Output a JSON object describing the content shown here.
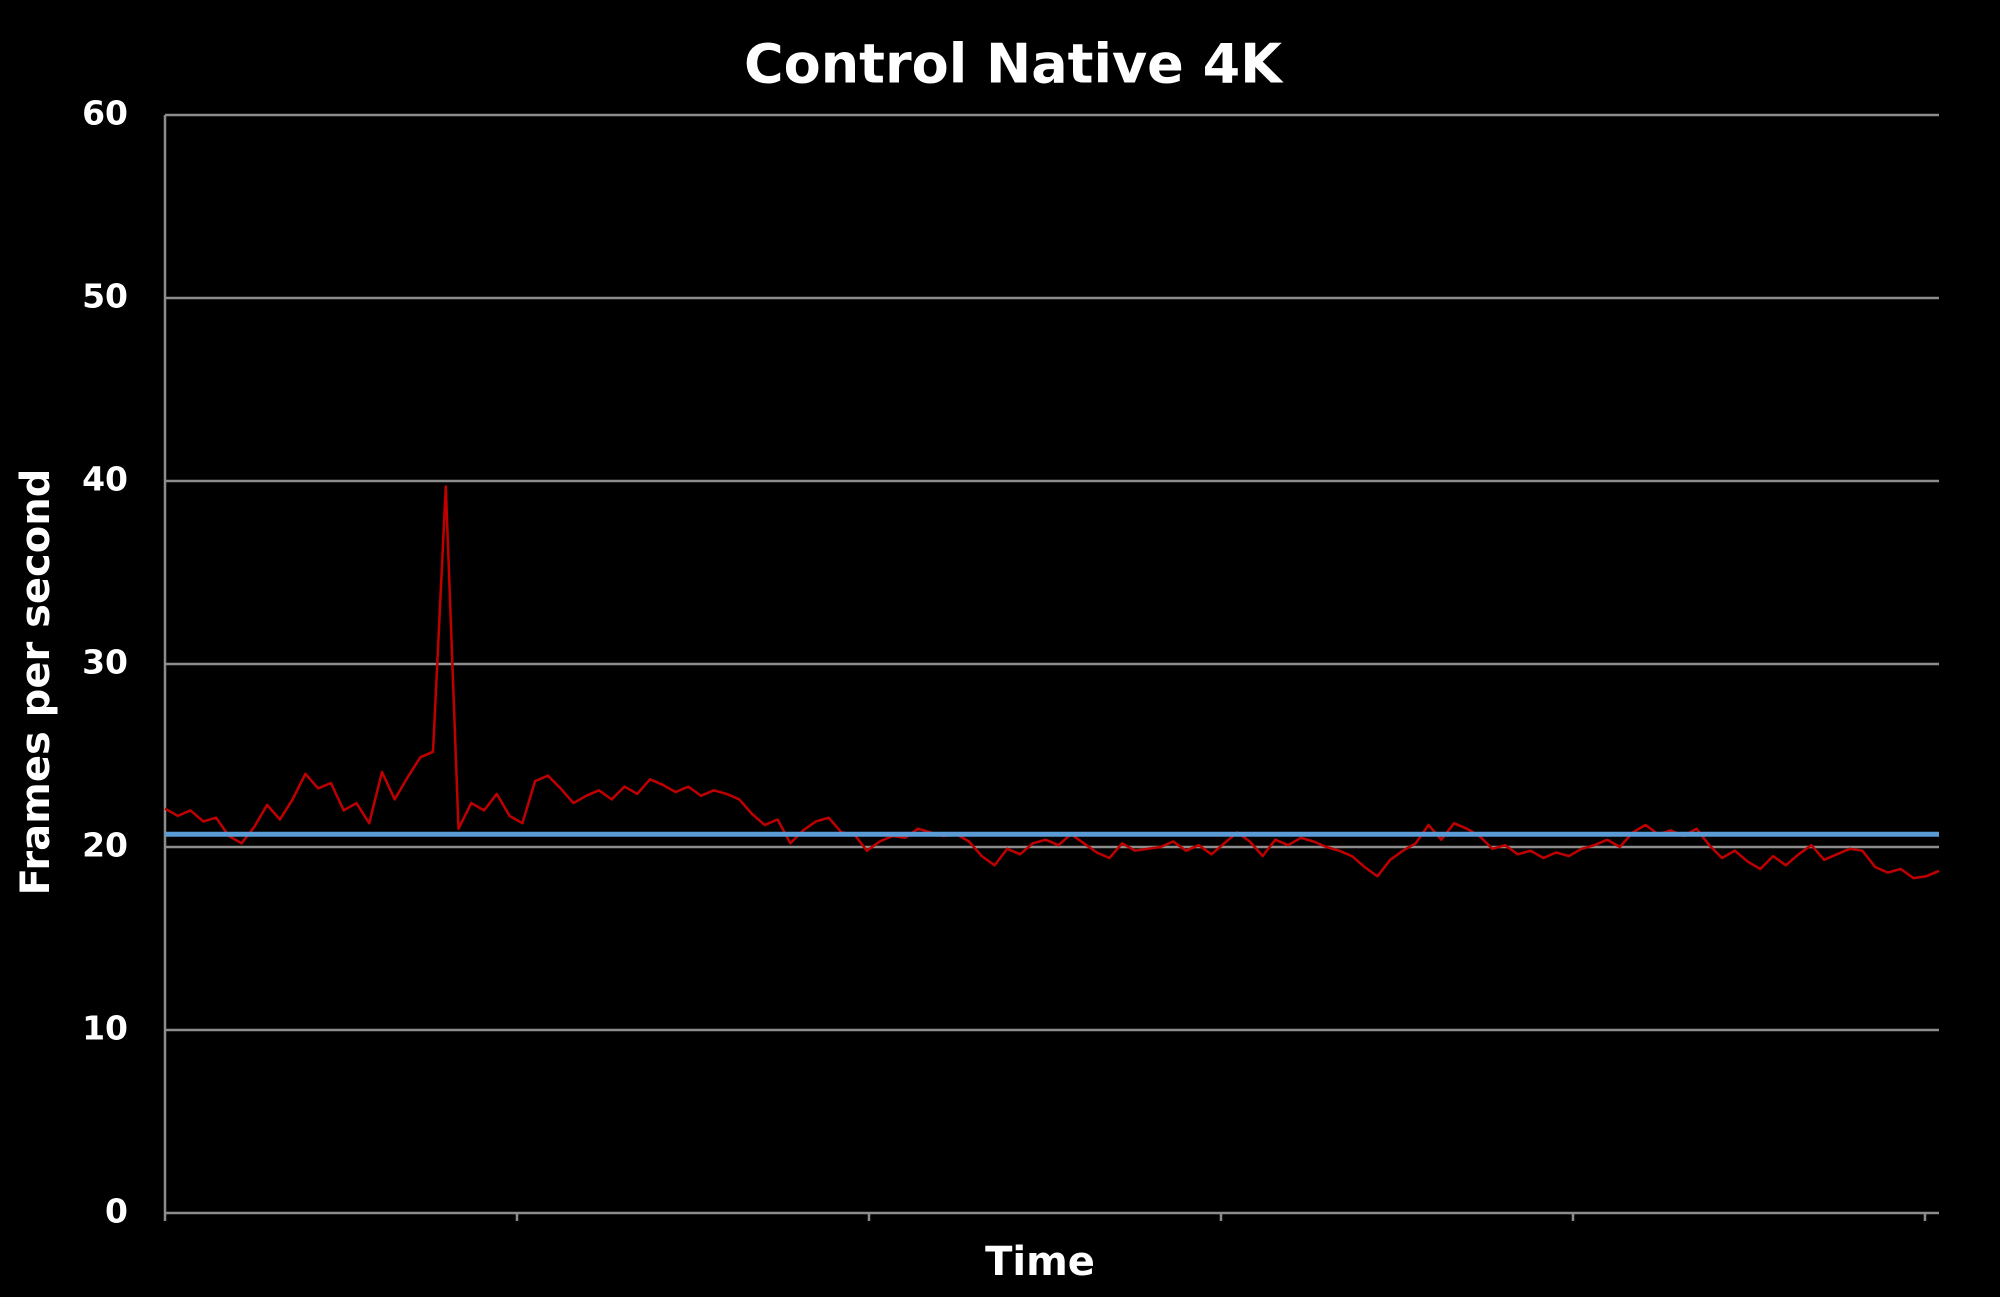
{
  "chart_data": {
    "type": "line",
    "title": "Control Native 4K",
    "x_label": "Time",
    "y_label": "Frames per second",
    "ylim": [
      0,
      60
    ],
    "yticks": [
      0,
      10,
      20,
      30,
      40,
      50,
      60
    ],
    "grid": true,
    "series": [
      {
        "color": "#c00000",
        "values": [
          22.1,
          21.7,
          22.0,
          21.4,
          21.6,
          20.6,
          20.2,
          21.1,
          22.3,
          21.5,
          22.6,
          24.0,
          23.2,
          23.5,
          22.0,
          22.4,
          21.3,
          24.1,
          22.6,
          23.8,
          24.9,
          25.2,
          39.7,
          21.0,
          22.4,
          22.0,
          22.9,
          21.7,
          21.3,
          23.6,
          23.9,
          23.2,
          22.4,
          22.8,
          23.1,
          22.6,
          23.3,
          22.9,
          23.7,
          23.4,
          23.0,
          23.3,
          22.8,
          23.1,
          22.9,
          22.6,
          21.8,
          21.2,
          21.5,
          20.2,
          20.9,
          21.4,
          21.6,
          20.8,
          20.7,
          19.8,
          20.3,
          20.6,
          20.5,
          21.0,
          20.8,
          20.6,
          20.7,
          20.3,
          19.5,
          19.0,
          19.9,
          19.6,
          20.2,
          20.4,
          20.1,
          20.7,
          20.2,
          19.7,
          19.4,
          20.2,
          19.8,
          19.9,
          20.0,
          20.3,
          19.8,
          20.1,
          19.6,
          20.2,
          20.8,
          20.3,
          19.5,
          20.4,
          20.1,
          20.5,
          20.3,
          20.0,
          19.8,
          19.5,
          18.9,
          18.4,
          19.3,
          19.8,
          20.2,
          21.2,
          20.4,
          21.3,
          21.0,
          20.6,
          19.9,
          20.1,
          19.6,
          19.8,
          19.4,
          19.7,
          19.5,
          19.9,
          20.1,
          20.4,
          20.0,
          20.8,
          21.2,
          20.7,
          20.9,
          20.6,
          21.0,
          20.1,
          19.4,
          19.8,
          19.2,
          18.8,
          19.5,
          19.0,
          19.6,
          20.1,
          19.3,
          19.6,
          19.9,
          19.8,
          18.9,
          18.6,
          18.8,
          18.3,
          18.4,
          18.7
        ]
      }
    ],
    "reference_line": {
      "value": 20.7,
      "color": "#5b9bd5"
    }
  }
}
